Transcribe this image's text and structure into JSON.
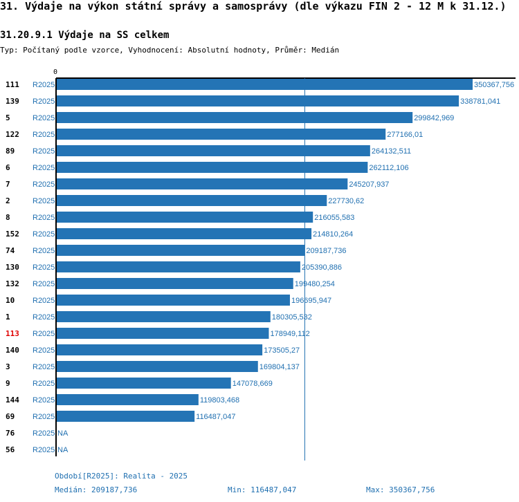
{
  "title": "31. Výdaje na výkon státní správy a samosprávy (dle výkazu FIN 2 - 12 M k 31.12.)",
  "subtitle": "31.20.9.1 Výdaje na SS celkem",
  "description": "Typ: Počítaný podle vzorce, Vyhodnocení: Absolutní hodnoty, Průměr: Medián",
  "footer": {
    "period": "Období[R2025]: Realita - 2025",
    "median": "Medián: 209187,736",
    "min": "Min: 116487,047",
    "max": "Max: 350367,756"
  },
  "colors": {
    "bar": "#2474b5",
    "value_text": "#1f6fb0",
    "highlight": "#e00000",
    "axis": "#000000",
    "median_line": "#1f6fb0"
  },
  "chart_data": {
    "type": "bar",
    "orientation": "horizontal",
    "axis_zero_label": "0",
    "xlim": [
      0,
      350367.756
    ],
    "median": 209187.736,
    "rows": [
      {
        "id": "111",
        "period": "R2025",
        "value": 350367.756,
        "label": "350367,756",
        "highlight": false
      },
      {
        "id": "139",
        "period": "R2025",
        "value": 338781.041,
        "label": "338781,041",
        "highlight": false
      },
      {
        "id": "5",
        "period": "R2025",
        "value": 299842.969,
        "label": "299842,969",
        "highlight": false
      },
      {
        "id": "122",
        "period": "R2025",
        "value": 277166.01,
        "label": "277166,01",
        "highlight": false
      },
      {
        "id": "89",
        "period": "R2025",
        "value": 264132.511,
        "label": "264132,511",
        "highlight": false
      },
      {
        "id": "6",
        "period": "R2025",
        "value": 262112.106,
        "label": "262112,106",
        "highlight": false
      },
      {
        "id": "7",
        "period": "R2025",
        "value": 245207.937,
        "label": "245207,937",
        "highlight": false
      },
      {
        "id": "2",
        "period": "R2025",
        "value": 227730.62,
        "label": "227730,62",
        "highlight": false
      },
      {
        "id": "8",
        "period": "R2025",
        "value": 216055.583,
        "label": "216055,583",
        "highlight": false
      },
      {
        "id": "152",
        "period": "R2025",
        "value": 214810.264,
        "label": "214810,264",
        "highlight": false
      },
      {
        "id": "74",
        "period": "R2025",
        "value": 209187.736,
        "label": "209187,736",
        "highlight": false
      },
      {
        "id": "130",
        "period": "R2025",
        "value": 205390.886,
        "label": "205390,886",
        "highlight": false
      },
      {
        "id": "132",
        "period": "R2025",
        "value": 199480.254,
        "label": "199480,254",
        "highlight": false
      },
      {
        "id": "10",
        "period": "R2025",
        "value": 196695.947,
        "label": "196695,947",
        "highlight": false
      },
      {
        "id": "1",
        "period": "R2025",
        "value": 180305.532,
        "label": "180305,532",
        "highlight": false
      },
      {
        "id": "113",
        "period": "R2025",
        "value": 178949.112,
        "label": "178949,112",
        "highlight": true
      },
      {
        "id": "140",
        "period": "R2025",
        "value": 173505.27,
        "label": "173505,27",
        "highlight": false
      },
      {
        "id": "3",
        "period": "R2025",
        "value": 169804.137,
        "label": "169804,137",
        "highlight": false
      },
      {
        "id": "9",
        "period": "R2025",
        "value": 147078.669,
        "label": "147078,669",
        "highlight": false
      },
      {
        "id": "144",
        "period": "R2025",
        "value": 119803.468,
        "label": "119803,468",
        "highlight": false
      },
      {
        "id": "69",
        "period": "R2025",
        "value": 116487.047,
        "label": "116487,047",
        "highlight": false
      },
      {
        "id": "76",
        "period": "R2025",
        "value": null,
        "label": "NA",
        "highlight": false
      },
      {
        "id": "56",
        "period": "R2025",
        "value": null,
        "label": "NA",
        "highlight": false
      }
    ]
  }
}
